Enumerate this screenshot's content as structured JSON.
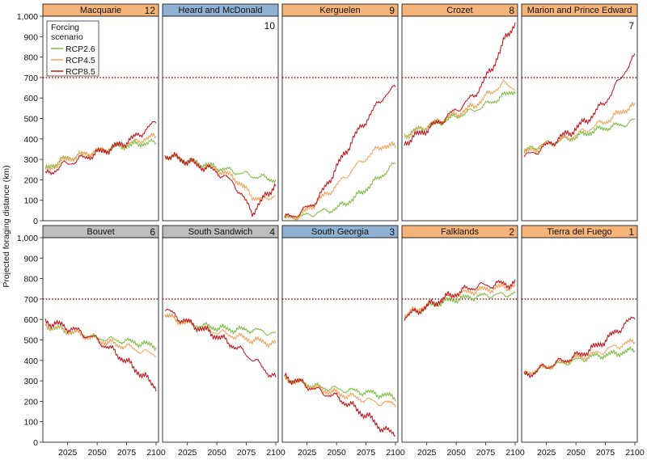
{
  "figure": {
    "ylabel": "Projected foraging distance (km)",
    "threshold_km": 700,
    "ylim": [
      0,
      1000
    ],
    "xlim": [
      2006,
      2100
    ],
    "yticks": [
      0,
      100,
      200,
      300,
      400,
      500,
      600,
      700,
      800,
      900,
      1000
    ],
    "ytick_labels": [
      "0",
      "100",
      "200",
      "300",
      "400",
      "500",
      "600",
      "700",
      "800",
      "900",
      "1,000"
    ],
    "xticks": [
      2025,
      2050,
      2075,
      2100
    ],
    "xtick_labels": [
      "2025",
      "2050",
      "2075",
      "2100"
    ],
    "legend": {
      "title_line1": "Forcing",
      "title_line2": "scenario",
      "entries": [
        "RCP2.6",
        "RCP4.5",
        "RCP8.5"
      ]
    },
    "colors": {
      "rcp26": "#7cbf42",
      "rcp45": "#f4a35c",
      "rcp85": "#c0161b",
      "threshold": "#9b1c1c",
      "header_orange": "#f7b479",
      "header_gray": "#bdbdbd",
      "header_blue": "#8fb1d3"
    }
  },
  "chart_data": [
    {
      "type": "line",
      "title": "Macquarie",
      "rank": "12",
      "header": "orange",
      "series": [
        {
          "name": "RCP2.6",
          "x": [
            2006,
            2020,
            2035,
            2050,
            2065,
            2080,
            2090,
            2100
          ],
          "values": [
            250,
            300,
            320,
            340,
            360,
            370,
            380,
            380
          ]
        },
        {
          "name": "RCP4.5",
          "x": [
            2006,
            2020,
            2035,
            2050,
            2065,
            2080,
            2090,
            2100
          ],
          "values": [
            240,
            290,
            320,
            340,
            360,
            380,
            400,
            410
          ]
        },
        {
          "name": "RCP8.5",
          "x": [
            2006,
            2020,
            2035,
            2050,
            2065,
            2080,
            2090,
            2100
          ],
          "values": [
            220,
            270,
            300,
            330,
            360,
            400,
            440,
            480
          ]
        }
      ]
    },
    {
      "type": "line",
      "title": "Heard and McDonald",
      "rank": "10",
      "header": "blue",
      "series": [
        {
          "name": "RCP2.6",
          "x": [
            2006,
            2020,
            2035,
            2050,
            2065,
            2080,
            2090,
            2100
          ],
          "values": [
            320,
            300,
            280,
            260,
            240,
            220,
            210,
            200
          ]
        },
        {
          "name": "RCP4.5",
          "x": [
            2006,
            2020,
            2035,
            2050,
            2065,
            2080,
            2090,
            2100
          ],
          "values": [
            320,
            300,
            270,
            250,
            210,
            120,
            100,
            130
          ]
        },
        {
          "name": "RCP8.5",
          "x": [
            2006,
            2020,
            2035,
            2050,
            2065,
            2080,
            2090,
            2100
          ],
          "values": [
            320,
            300,
            270,
            240,
            180,
            40,
            110,
            180
          ]
        }
      ]
    },
    {
      "type": "line",
      "title": "Kerguelen",
      "rank": "9",
      "header": "orange",
      "series": [
        {
          "name": "RCP2.6",
          "x": [
            2006,
            2020,
            2035,
            2050,
            2065,
            2080,
            2090,
            2100
          ],
          "values": [
            10,
            20,
            40,
            60,
            110,
            180,
            230,
            280
          ]
        },
        {
          "name": "RCP4.5",
          "x": [
            2006,
            2020,
            2035,
            2050,
            2065,
            2080,
            2090,
            2100
          ],
          "values": [
            10,
            30,
            100,
            170,
            260,
            330,
            370,
            360
          ]
        },
        {
          "name": "RCP8.5",
          "x": [
            2006,
            2020,
            2035,
            2050,
            2065,
            2080,
            2090,
            2100
          ],
          "values": [
            10,
            40,
            110,
            260,
            410,
            530,
            610,
            650
          ]
        }
      ]
    },
    {
      "type": "line",
      "title": "Crozet",
      "rank": "8",
      "header": "orange",
      "series": [
        {
          "name": "RCP2.6",
          "x": [
            2006,
            2020,
            2035,
            2050,
            2065,
            2080,
            2090,
            2100
          ],
          "values": [
            420,
            450,
            480,
            510,
            540,
            580,
            610,
            640
          ]
        },
        {
          "name": "RCP4.5",
          "x": [
            2006,
            2020,
            2035,
            2050,
            2065,
            2080,
            2090,
            2100
          ],
          "values": [
            410,
            450,
            490,
            520,
            560,
            630,
            670,
            650
          ]
        },
        {
          "name": "RCP8.5",
          "x": [
            2006,
            2020,
            2035,
            2050,
            2065,
            2080,
            2090,
            2100
          ],
          "values": [
            380,
            430,
            480,
            540,
            610,
            740,
            870,
            970
          ]
        }
      ]
    },
    {
      "type": "line",
      "title": "Marion and Prince Edward",
      "rank": "7",
      "header": "orange",
      "series": [
        {
          "name": "RCP2.6",
          "x": [
            2006,
            2020,
            2035,
            2050,
            2065,
            2080,
            2090,
            2100
          ],
          "values": [
            340,
            370,
            390,
            410,
            440,
            460,
            470,
            490
          ]
        },
        {
          "name": "RCP4.5",
          "x": [
            2006,
            2020,
            2035,
            2050,
            2065,
            2080,
            2090,
            2100
          ],
          "values": [
            330,
            360,
            390,
            420,
            460,
            500,
            540,
            560
          ]
        },
        {
          "name": "RCP8.5",
          "x": [
            2006,
            2020,
            2035,
            2050,
            2065,
            2080,
            2090,
            2100
          ],
          "values": [
            310,
            350,
            400,
            450,
            520,
            620,
            720,
            800
          ]
        }
      ]
    },
    {
      "type": "line",
      "title": "Bouvet",
      "rank": "6",
      "header": "gray",
      "series": [
        {
          "name": "RCP2.6",
          "x": [
            2006,
            2020,
            2035,
            2050,
            2065,
            2080,
            2090,
            2100
          ],
          "values": [
            570,
            550,
            530,
            510,
            500,
            490,
            480,
            470
          ]
        },
        {
          "name": "RCP4.5",
          "x": [
            2006,
            2020,
            2035,
            2050,
            2065,
            2080,
            2090,
            2100
          ],
          "values": [
            570,
            550,
            530,
            500,
            480,
            460,
            440,
            430
          ]
        },
        {
          "name": "RCP8.5",
          "x": [
            2006,
            2020,
            2035,
            2050,
            2065,
            2080,
            2090,
            2100
          ],
          "values": [
            590,
            570,
            540,
            500,
            440,
            370,
            320,
            270
          ]
        }
      ]
    },
    {
      "type": "line",
      "title": "South Sandwich",
      "rank": "4",
      "header": "gray",
      "series": [
        {
          "name": "RCP2.6",
          "x": [
            2006,
            2020,
            2035,
            2050,
            2065,
            2080,
            2090,
            2100
          ],
          "values": [
            620,
            590,
            570,
            560,
            550,
            550,
            540,
            530
          ]
        },
        {
          "name": "RCP4.5",
          "x": [
            2006,
            2020,
            2035,
            2050,
            2065,
            2080,
            2090,
            2100
          ],
          "values": [
            620,
            590,
            560,
            540,
            520,
            500,
            490,
            480
          ]
        },
        {
          "name": "RCP8.5",
          "x": [
            2006,
            2020,
            2035,
            2050,
            2065,
            2080,
            2090,
            2100
          ],
          "values": [
            650,
            600,
            560,
            520,
            470,
            410,
            360,
            310
          ]
        }
      ]
    },
    {
      "type": "line",
      "title": "South Georgia",
      "rank": "3",
      "header": "blue",
      "series": [
        {
          "name": "RCP2.6",
          "x": [
            2006,
            2020,
            2035,
            2050,
            2065,
            2080,
            2090,
            2100
          ],
          "values": [
            310,
            290,
            270,
            260,
            250,
            240,
            230,
            220
          ]
        },
        {
          "name": "RCP4.5",
          "x": [
            2006,
            2020,
            2035,
            2050,
            2065,
            2080,
            2090,
            2100
          ],
          "values": [
            310,
            290,
            260,
            240,
            220,
            200,
            190,
            190
          ]
        },
        {
          "name": "RCP8.5",
          "x": [
            2006,
            2020,
            2035,
            2050,
            2065,
            2080,
            2090,
            2100
          ],
          "values": [
            320,
            290,
            250,
            220,
            170,
            110,
            60,
            40
          ]
        }
      ]
    },
    {
      "type": "line",
      "title": "Falklands",
      "rank": "2",
      "header": "orange",
      "series": [
        {
          "name": "RCP2.6",
          "x": [
            2006,
            2020,
            2035,
            2050,
            2065,
            2080,
            2090,
            2100
          ],
          "values": [
            620,
            650,
            680,
            700,
            710,
            720,
            720,
            730
          ]
        },
        {
          "name": "RCP4.5",
          "x": [
            2006,
            2020,
            2035,
            2050,
            2065,
            2080,
            2090,
            2100
          ],
          "values": [
            620,
            660,
            690,
            720,
            740,
            750,
            760,
            760
          ]
        },
        {
          "name": "RCP8.5",
          "x": [
            2006,
            2020,
            2035,
            2050,
            2065,
            2080,
            2090,
            2100
          ],
          "values": [
            610,
            650,
            690,
            730,
            760,
            770,
            775,
            775
          ]
        }
      ]
    },
    {
      "type": "line",
      "title": "Tierra del Fuego",
      "rank": "1",
      "header": "orange",
      "series": [
        {
          "name": "RCP2.6",
          "x": [
            2006,
            2020,
            2035,
            2050,
            2065,
            2080,
            2090,
            2100
          ],
          "values": [
            330,
            360,
            380,
            400,
            420,
            430,
            440,
            450
          ]
        },
        {
          "name": "RCP4.5",
          "x": [
            2006,
            2020,
            2035,
            2050,
            2065,
            2080,
            2090,
            2100
          ],
          "values": [
            330,
            360,
            390,
            410,
            430,
            460,
            480,
            490
          ]
        },
        {
          "name": "RCP8.5",
          "x": [
            2006,
            2020,
            2035,
            2050,
            2065,
            2080,
            2090,
            2100
          ],
          "values": [
            320,
            360,
            390,
            420,
            460,
            520,
            570,
            610
          ]
        }
      ]
    }
  ]
}
